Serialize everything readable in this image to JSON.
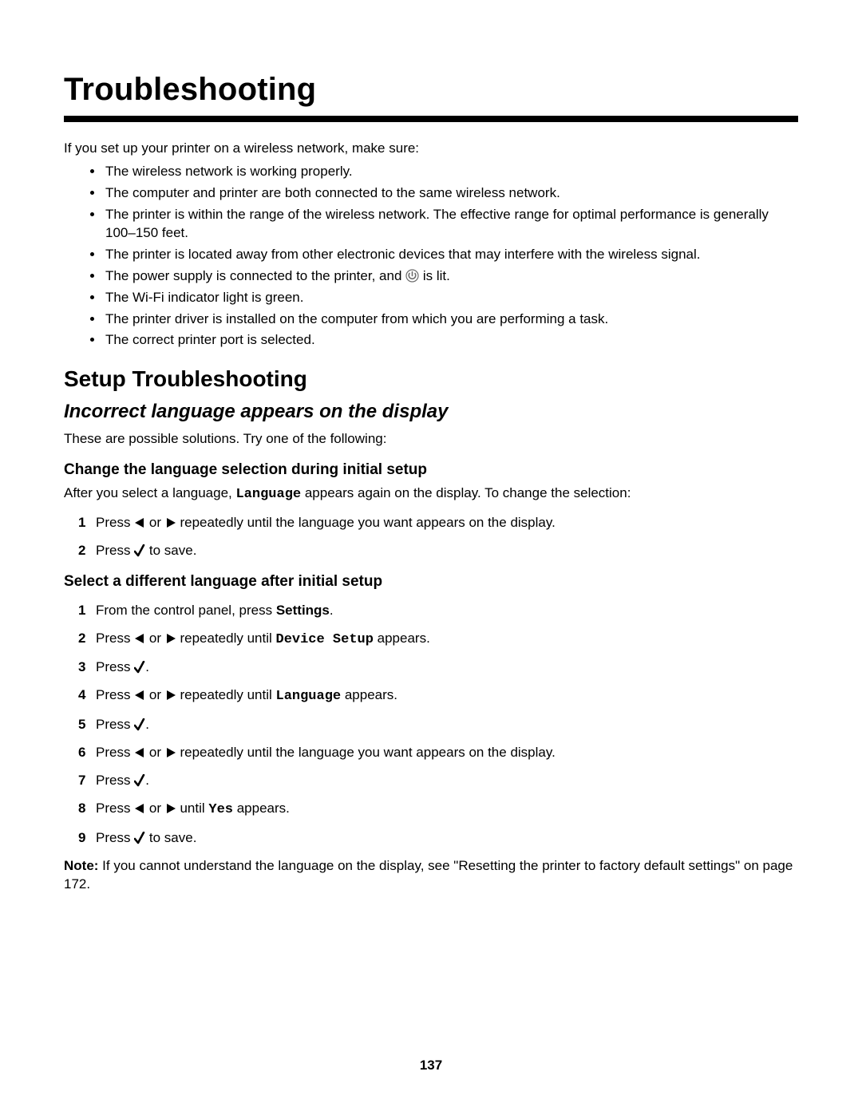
{
  "page_number": "137",
  "title": "Troubleshooting",
  "intro": "If you set up your printer on a wireless network, make sure:",
  "bullets": [
    "The wireless network is working properly.",
    "The computer and printer are both connected to the same wireless network.",
    "The printer is within the range of the wireless network. The effective range for optimal performance is generally 100–150 feet.",
    "The printer is located away from other electronic devices that may interfere with the wireless signal.",
    "__POWER_ITEM__",
    "The Wi-Fi indicator light is green.",
    "The printer driver is installed on the computer from which you are performing a task.",
    "The correct printer port is selected."
  ],
  "power_item_prefix": "The power supply is connected to the printer, and ",
  "power_item_suffix": " is lit.",
  "section": "Setup Troubleshooting",
  "subsection": "Incorrect language appears on the display",
  "possible": "These are possible solutions. Try one of the following:",
  "block1_title": "Change the language selection during initial setup",
  "block1_after_prefix": "After you select a language, ",
  "block1_after_mono": "Language",
  "block1_after_suffix": " appears again on the display. To change the selection:",
  "steps1": [
    {
      "prefix": "Press ",
      "mid": " or ",
      "suffix": " repeatedly until the language you want appears on the display.",
      "arrows": true
    },
    {
      "prefix": "Press ",
      "suffix": " to save.",
      "check": true
    }
  ],
  "block2_title": "Select a different language after initial setup",
  "steps2": [
    {
      "prefix": "From the control panel, press ",
      "bold": "Settings",
      "suffix": "."
    },
    {
      "prefix": "Press ",
      "mid": " or ",
      "mid2": " repeatedly until ",
      "mono": "Device Setup",
      "suffix": " appears.",
      "arrows": true
    },
    {
      "prefix": "Press ",
      "suffix": ".",
      "check": true
    },
    {
      "prefix": "Press ",
      "mid": " or ",
      "mid2": " repeatedly until ",
      "mono": "Language",
      "suffix": " appears.",
      "arrows": true
    },
    {
      "prefix": "Press ",
      "suffix": ".",
      "check": true
    },
    {
      "prefix": "Press ",
      "mid": " or ",
      "suffix": " repeatedly until the language you want appears on the display.",
      "arrows": true
    },
    {
      "prefix": "Press ",
      "suffix": ".",
      "check": true
    },
    {
      "prefix": "Press ",
      "mid": " or ",
      "mid2": " until ",
      "mono": "Yes",
      "suffix": " appears.",
      "arrows": true
    },
    {
      "prefix": "Press ",
      "suffix": " to save.",
      "check": true
    }
  ],
  "note_bold": "Note:",
  "note_body": " If you cannot understand the language on the display, see \"Resetting the printer to factory default settings\" on page 172.",
  "colors": {
    "text": "#000000",
    "bg": "#ffffff",
    "rule": "#000000"
  }
}
